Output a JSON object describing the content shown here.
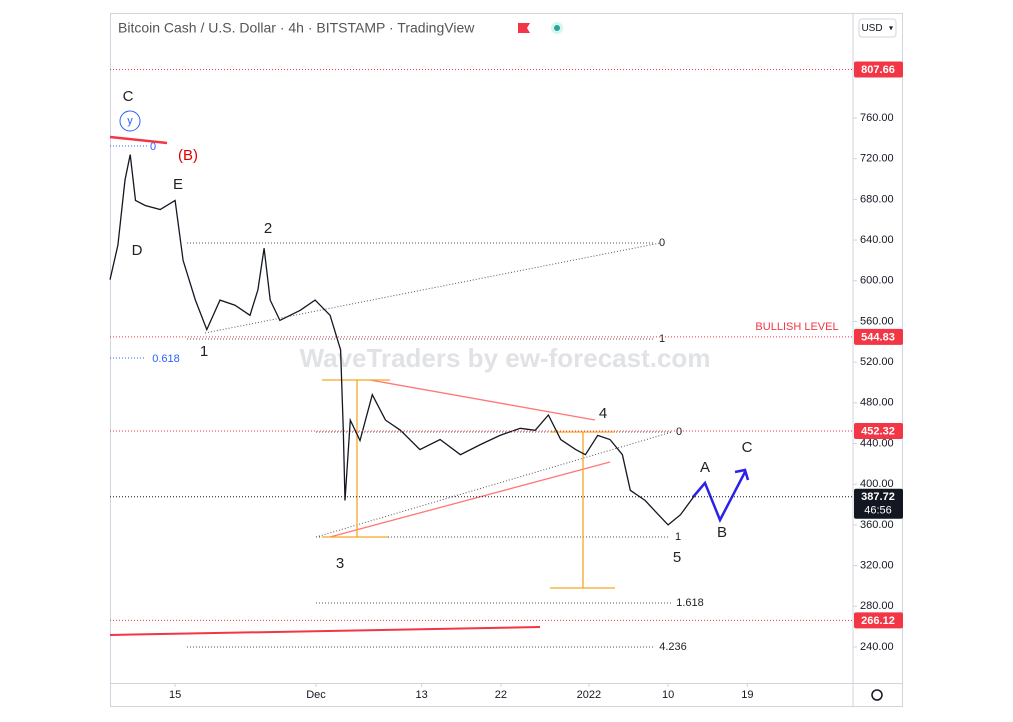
{
  "chart_data": {
    "type": "line",
    "title": "Bitcoin Cash / U.S. Dollar · 4h · BITSTAMP · TradingView",
    "currency": "USD",
    "watermark": "WaveTraders by ew-forecast.com",
    "color": "#131722",
    "x": [
      7.6,
      8.5,
      9.3,
      9.9,
      10.5,
      11.6,
      13.3,
      15,
      15.9,
      17.3,
      18.6,
      20.1,
      21.8,
      23.5,
      24.4,
      25.1,
      25.8,
      26.9,
      29.2,
      30.9,
      32.6,
      33.8,
      34.1,
      34.3,
      34.9,
      36.0,
      37.4,
      38.9,
      40.6,
      42.8,
      45.1,
      47.4,
      49.7,
      51.9,
      54.2,
      55.9,
      57.4,
      58.8,
      60.5,
      61.6,
      63.0,
      64.4,
      65.8,
      66.7,
      68.4,
      69.9,
      71.0,
      72.4,
      73.9
    ],
    "values": [
      601,
      635,
      699,
      724,
      679,
      674,
      670,
      679,
      620,
      581,
      552,
      581,
      576,
      566,
      591,
      632,
      581,
      561,
      571,
      581,
      566,
      532,
      453,
      384,
      463,
      443,
      488,
      463,
      453,
      434,
      444,
      429,
      439,
      448,
      455,
      453,
      468,
      444,
      434,
      429,
      448,
      444,
      429,
      394,
      384,
      370,
      360,
      370,
      387.72
    ],
    "xlim": [
      7.6,
      92
    ],
    "xticks": [
      {
        "value": 15,
        "label": "15"
      },
      {
        "value": 31,
        "label": "Dec"
      },
      {
        "value": 43,
        "label": "13"
      },
      {
        "value": 52,
        "label": "22"
      },
      {
        "value": 62,
        "label": "2022"
      },
      {
        "value": 71,
        "label": "10"
      },
      {
        "value": 80,
        "label": "19"
      }
    ],
    "ylim": [
      204.6,
      863.2
    ],
    "yticks": [
      {
        "value": 240,
        "label": "240.00"
      },
      {
        "value": 280,
        "label": "280.00"
      },
      {
        "value": 320,
        "label": "320.00"
      },
      {
        "value": 360,
        "label": "360.00"
      },
      {
        "value": 400,
        "label": "400.00"
      },
      {
        "value": 440,
        "label": "440.00"
      },
      {
        "value": 480,
        "label": "480.00"
      },
      {
        "value": 520,
        "label": "520.00"
      },
      {
        "value": 560,
        "label": "560.00"
      },
      {
        "value": 600,
        "label": "600.00"
      },
      {
        "value": 640,
        "label": "640.00"
      },
      {
        "value": 680,
        "label": "680.00"
      },
      {
        "value": 720,
        "label": "720.00"
      },
      {
        "value": 760,
        "label": "760.00"
      }
    ],
    "price_levels": [
      807.66,
      544.83,
      452.32,
      266.12
    ],
    "level_color": "#f23645",
    "last_price": 387.72,
    "countdown": "46:56",
    "wave_labels": [
      "C",
      "y",
      "(B)",
      "E",
      "D",
      "2",
      "1",
      "3",
      "4",
      "5",
      "A",
      "B",
      "C"
    ],
    "fib_labels": [
      "0",
      "0",
      "1",
      "0.618",
      "0",
      "1",
      "1.618",
      "4.236"
    ],
    "note": "BULLISH LEVEL"
  }
}
